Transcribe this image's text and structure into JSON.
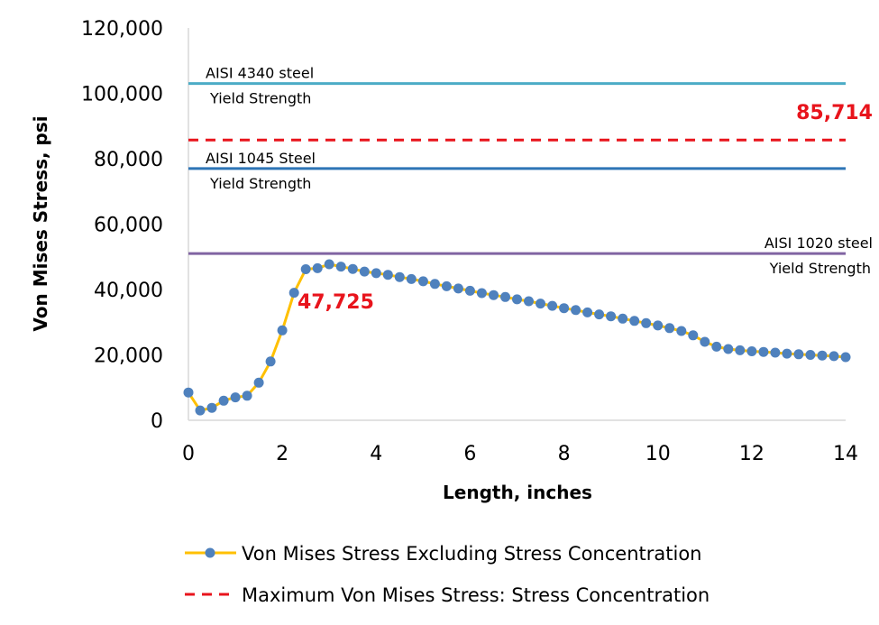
{
  "chart_data": {
    "type": "line",
    "title": "",
    "xlabel": "Length, inches",
    "ylabel": "Von Mises Stress, psi",
    "xlim": [
      0,
      14
    ],
    "ylim": [
      0,
      120000
    ],
    "x_ticks": [
      0,
      2,
      4,
      6,
      8,
      10,
      12,
      14
    ],
    "y_ticks": [
      0,
      20000,
      40000,
      60000,
      80000,
      100000,
      120000
    ],
    "x_tick_labels": [
      "0",
      "2",
      "4",
      "6",
      "8",
      "10",
      "12",
      "14"
    ],
    "y_tick_labels": [
      "0",
      "20,000",
      "40,000",
      "60,000",
      "80,000",
      "100,000",
      "120,000"
    ],
    "grid": false,
    "legend_position": "bottom",
    "series": [
      {
        "name": "Von Mises Stress Excluding Stress Concentration",
        "line_color": "#FFC000",
        "marker_color": "#4F81BD",
        "x": [
          0,
          0.25,
          0.5,
          0.75,
          1.0,
          1.25,
          1.5,
          1.75,
          2.0,
          2.25,
          2.5,
          2.75,
          3.0,
          3.25,
          3.5,
          3.75,
          4.0,
          4.25,
          4.5,
          4.75,
          5.0,
          5.25,
          5.5,
          5.75,
          6.0,
          6.25,
          6.5,
          6.75,
          7.0,
          7.25,
          7.5,
          7.75,
          8.0,
          8.25,
          8.5,
          8.75,
          9.0,
          9.25,
          9.5,
          9.75,
          10.0,
          10.25,
          10.5,
          10.75,
          11.0,
          11.25,
          11.5,
          11.75,
          12.0,
          12.25,
          12.5,
          12.75,
          13.0,
          13.25,
          13.5,
          13.75,
          14.0
        ],
        "y": [
          8500,
          3000,
          3800,
          6000,
          7000,
          7500,
          11500,
          18000,
          27500,
          39000,
          46200,
          46500,
          47725,
          47000,
          46300,
          45500,
          45000,
          44500,
          43800,
          43200,
          42500,
          41700,
          41000,
          40300,
          39600,
          38900,
          38300,
          37700,
          37000,
          36400,
          35700,
          35000,
          34300,
          33700,
          33000,
          32400,
          31800,
          31100,
          30400,
          29700,
          29000,
          28200,
          27300,
          26000,
          24000,
          22500,
          21800,
          21400,
          21100,
          20900,
          20700,
          20400,
          20200,
          20000,
          19800,
          19600,
          19300
        ]
      },
      {
        "name": "Maximum Von Mises Stress: Stress Concentration",
        "line_color": "#E8141C",
        "style": "dashed",
        "y_constant": 85714
      }
    ],
    "reference_lines": [
      {
        "label_line1": "AISI 4340  steel",
        "label_line2": "Yield Strength",
        "y": 103000,
        "color": "#4BACC6",
        "label_align": "left"
      },
      {
        "label_line1": "AISI 1045 Steel",
        "label_line2": "Yield Strength",
        "y": 77000,
        "color": "#2E75B6",
        "label_align": "left"
      },
      {
        "label_line1": "AISI 1020 steel",
        "label_line2": "Yield Strength",
        "y": 51000,
        "color": "#8064A2",
        "label_align": "right"
      }
    ],
    "annotations": [
      {
        "text": "85,714",
        "color": "#E8141C"
      },
      {
        "text": "47,725",
        "color": "#E8141C"
      }
    ]
  }
}
